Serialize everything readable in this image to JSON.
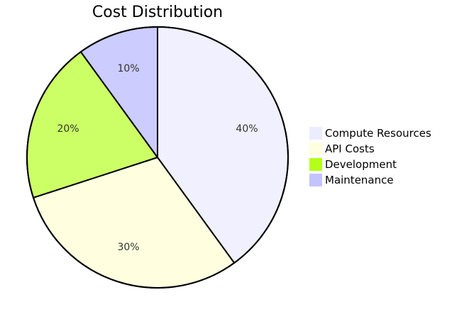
{
  "chart_data": {
    "type": "pie",
    "title": "Cost Distribution",
    "categories": [
      "Compute Resources",
      "API Costs",
      "Development",
      "Maintenance"
    ],
    "values": [
      40,
      30,
      20,
      10
    ],
    "value_labels": [
      "40%",
      "30%",
      "20%",
      "10%"
    ],
    "colors": [
      "#f0f0ff",
      "#ffffe0",
      "#ccff66",
      "#ccccff"
    ],
    "legend_colors": [
      "#ececff",
      "#ffffde",
      "#b3ff1a",
      "#c3c3ff"
    ],
    "start": "12 o'clock",
    "direction": "clockwise",
    "legend_position": "right"
  }
}
